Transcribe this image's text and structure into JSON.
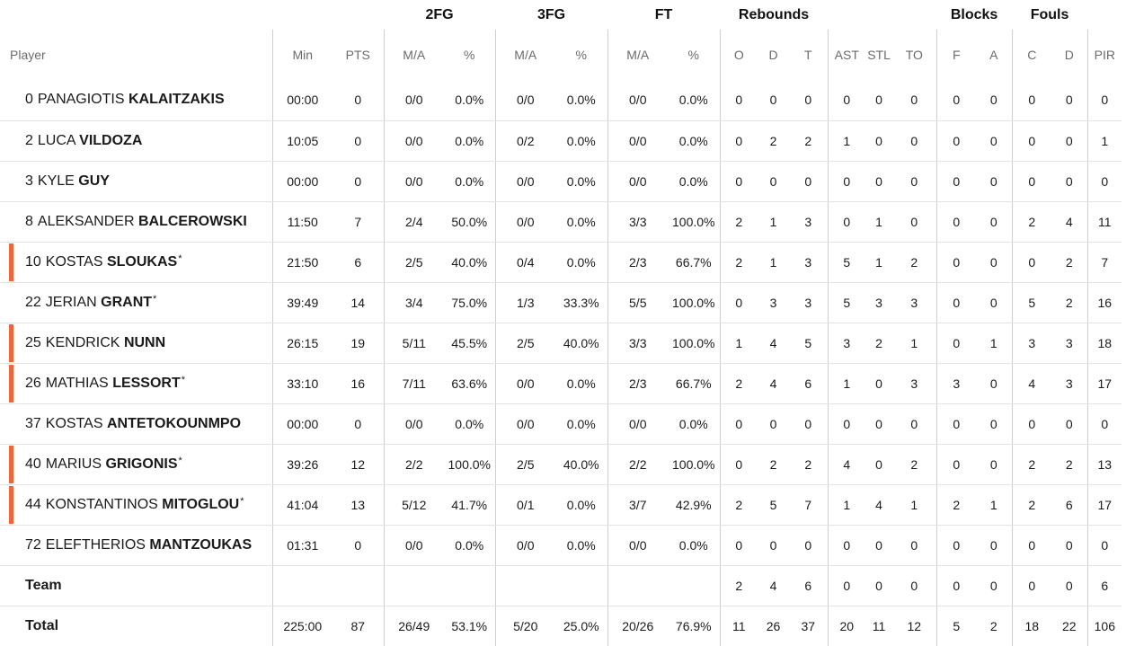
{
  "groups": {
    "fg2": "2FG",
    "fg3": "3FG",
    "ft": "FT",
    "reb": "Rebounds",
    "blk": "Blocks",
    "fouls": "Fouls"
  },
  "columns": {
    "player": "Player",
    "min": "Min",
    "pts": "PTS",
    "fg2_ma": "M/A",
    "fg2_pct": "%",
    "fg3_ma": "M/A",
    "fg3_pct": "%",
    "ft_ma": "M/A",
    "ft_pct": "%",
    "reb_o": "O",
    "reb_d": "D",
    "reb_t": "T",
    "ast": "AST",
    "stl": "STL",
    "to": "TO",
    "blk_f": "F",
    "blk_a": "A",
    "fouls_c": "C",
    "fouls_d": "D",
    "pir": "PIR"
  },
  "players": [
    {
      "number": "0",
      "first": "PANAGIOTIS",
      "last": "KALAITZAKIS",
      "star": "",
      "starter": false,
      "min": "00:00",
      "pts": "0",
      "fg2_ma": "0/0",
      "fg2_pct": "0.0%",
      "fg3_ma": "0/0",
      "fg3_pct": "0.0%",
      "ft_ma": "0/0",
      "ft_pct": "0.0%",
      "reb_o": "0",
      "reb_d": "0",
      "reb_t": "0",
      "ast": "0",
      "stl": "0",
      "to": "0",
      "blk_f": "0",
      "blk_a": "0",
      "fouls_c": "0",
      "fouls_d": "0",
      "pir": "0"
    },
    {
      "number": "2",
      "first": "LUCA",
      "last": "VILDOZA",
      "star": "",
      "starter": false,
      "min": "10:05",
      "pts": "0",
      "fg2_ma": "0/0",
      "fg2_pct": "0.0%",
      "fg3_ma": "0/2",
      "fg3_pct": "0.0%",
      "ft_ma": "0/0",
      "ft_pct": "0.0%",
      "reb_o": "0",
      "reb_d": "2",
      "reb_t": "2",
      "ast": "1",
      "stl": "0",
      "to": "0",
      "blk_f": "0",
      "blk_a": "0",
      "fouls_c": "0",
      "fouls_d": "0",
      "pir": "1"
    },
    {
      "number": "3",
      "first": "KYLE",
      "last": "GUY",
      "star": "",
      "starter": false,
      "min": "00:00",
      "pts": "0",
      "fg2_ma": "0/0",
      "fg2_pct": "0.0%",
      "fg3_ma": "0/0",
      "fg3_pct": "0.0%",
      "ft_ma": "0/0",
      "ft_pct": "0.0%",
      "reb_o": "0",
      "reb_d": "0",
      "reb_t": "0",
      "ast": "0",
      "stl": "0",
      "to": "0",
      "blk_f": "0",
      "blk_a": "0",
      "fouls_c": "0",
      "fouls_d": "0",
      "pir": "0"
    },
    {
      "number": "8",
      "first": "ALEKSANDER",
      "last": "BALCEROWSKI",
      "star": "",
      "starter": false,
      "min": "11:50",
      "pts": "7",
      "fg2_ma": "2/4",
      "fg2_pct": "50.0%",
      "fg3_ma": "0/0",
      "fg3_pct": "0.0%",
      "ft_ma": "3/3",
      "ft_pct": "100.0%",
      "reb_o": "2",
      "reb_d": "1",
      "reb_t": "3",
      "ast": "0",
      "stl": "1",
      "to": "0",
      "blk_f": "0",
      "blk_a": "0",
      "fouls_c": "2",
      "fouls_d": "4",
      "pir": "11"
    },
    {
      "number": "10",
      "first": "KOSTAS",
      "last": "SLOUKAS",
      "star": "*",
      "starter": true,
      "min": "21:50",
      "pts": "6",
      "fg2_ma": "2/5",
      "fg2_pct": "40.0%",
      "fg3_ma": "0/4",
      "fg3_pct": "0.0%",
      "ft_ma": "2/3",
      "ft_pct": "66.7%",
      "reb_o": "2",
      "reb_d": "1",
      "reb_t": "3",
      "ast": "5",
      "stl": "1",
      "to": "2",
      "blk_f": "0",
      "blk_a": "0",
      "fouls_c": "0",
      "fouls_d": "2",
      "pir": "7"
    },
    {
      "number": "22",
      "first": "JERIAN",
      "last": "GRANT",
      "star": "*",
      "starter": false,
      "min": "39:49",
      "pts": "14",
      "fg2_ma": "3/4",
      "fg2_pct": "75.0%",
      "fg3_ma": "1/3",
      "fg3_pct": "33.3%",
      "ft_ma": "5/5",
      "ft_pct": "100.0%",
      "reb_o": "0",
      "reb_d": "3",
      "reb_t": "3",
      "ast": "5",
      "stl": "3",
      "to": "3",
      "blk_f": "0",
      "blk_a": "0",
      "fouls_c": "5",
      "fouls_d": "2",
      "pir": "16"
    },
    {
      "number": "25",
      "first": "KENDRICK",
      "last": "NUNN",
      "star": "",
      "starter": true,
      "min": "26:15",
      "pts": "19",
      "fg2_ma": "5/11",
      "fg2_pct": "45.5%",
      "fg3_ma": "2/5",
      "fg3_pct": "40.0%",
      "ft_ma": "3/3",
      "ft_pct": "100.0%",
      "reb_o": "1",
      "reb_d": "4",
      "reb_t": "5",
      "ast": "3",
      "stl": "2",
      "to": "1",
      "blk_f": "0",
      "blk_a": "1",
      "fouls_c": "3",
      "fouls_d": "3",
      "pir": "18"
    },
    {
      "number": "26",
      "first": "MATHIAS",
      "last": "LESSORT",
      "star": "*",
      "starter": true,
      "min": "33:10",
      "pts": "16",
      "fg2_ma": "7/11",
      "fg2_pct": "63.6%",
      "fg3_ma": "0/0",
      "fg3_pct": "0.0%",
      "ft_ma": "2/3",
      "ft_pct": "66.7%",
      "reb_o": "2",
      "reb_d": "4",
      "reb_t": "6",
      "ast": "1",
      "stl": "0",
      "to": "3",
      "blk_f": "3",
      "blk_a": "0",
      "fouls_c": "4",
      "fouls_d": "3",
      "pir": "17"
    },
    {
      "number": "37",
      "first": "KOSTAS",
      "last": "ANTETOKOUNMPO",
      "star": "",
      "starter": false,
      "min": "00:00",
      "pts": "0",
      "fg2_ma": "0/0",
      "fg2_pct": "0.0%",
      "fg3_ma": "0/0",
      "fg3_pct": "0.0%",
      "ft_ma": "0/0",
      "ft_pct": "0.0%",
      "reb_o": "0",
      "reb_d": "0",
      "reb_t": "0",
      "ast": "0",
      "stl": "0",
      "to": "0",
      "blk_f": "0",
      "blk_a": "0",
      "fouls_c": "0",
      "fouls_d": "0",
      "pir": "0"
    },
    {
      "number": "40",
      "first": "MARIUS",
      "last": "GRIGONIS",
      "star": "*",
      "starter": true,
      "min": "39:26",
      "pts": "12",
      "fg2_ma": "2/2",
      "fg2_pct": "100.0%",
      "fg3_ma": "2/5",
      "fg3_pct": "40.0%",
      "ft_ma": "2/2",
      "ft_pct": "100.0%",
      "reb_o": "0",
      "reb_d": "2",
      "reb_t": "2",
      "ast": "4",
      "stl": "0",
      "to": "2",
      "blk_f": "0",
      "blk_a": "0",
      "fouls_c": "2",
      "fouls_d": "2",
      "pir": "13"
    },
    {
      "number": "44",
      "first": "KONSTANTINOS",
      "last": "MITOGLOU",
      "star": "*",
      "starter": true,
      "min": "41:04",
      "pts": "13",
      "fg2_ma": "5/12",
      "fg2_pct": "41.7%",
      "fg3_ma": "0/1",
      "fg3_pct": "0.0%",
      "ft_ma": "3/7",
      "ft_pct": "42.9%",
      "reb_o": "2",
      "reb_d": "5",
      "reb_t": "7",
      "ast": "1",
      "stl": "4",
      "to": "1",
      "blk_f": "2",
      "blk_a": "1",
      "fouls_c": "2",
      "fouls_d": "6",
      "pir": "17"
    },
    {
      "number": "72",
      "first": "ELEFTHERIOS",
      "last": "MANTZOUKAS",
      "star": "",
      "starter": false,
      "min": "01:31",
      "pts": "0",
      "fg2_ma": "0/0",
      "fg2_pct": "0.0%",
      "fg3_ma": "0/0",
      "fg3_pct": "0.0%",
      "ft_ma": "0/0",
      "ft_pct": "0.0%",
      "reb_o": "0",
      "reb_d": "0",
      "reb_t": "0",
      "ast": "0",
      "stl": "0",
      "to": "0",
      "blk_f": "0",
      "blk_a": "0",
      "fouls_c": "0",
      "fouls_d": "0",
      "pir": "0"
    }
  ],
  "team": {
    "label": "Team",
    "reb_o": "2",
    "reb_d": "4",
    "reb_t": "6",
    "ast": "0",
    "stl": "0",
    "to": "0",
    "blk_f": "0",
    "blk_a": "0",
    "fouls_c": "0",
    "fouls_d": "0",
    "pir": "6"
  },
  "total": {
    "label": "Total",
    "min": "225:00",
    "pts": "87",
    "fg2_ma": "26/49",
    "fg2_pct": "53.1%",
    "fg3_ma": "5/20",
    "fg3_pct": "25.0%",
    "ft_ma": "20/26",
    "ft_pct": "76.9%",
    "reb_o": "11",
    "reb_d": "26",
    "reb_t": "37",
    "ast": "20",
    "stl": "11",
    "to": "12",
    "blk_f": "5",
    "blk_a": "2",
    "fouls_c": "18",
    "fouls_d": "22",
    "pir": "106"
  },
  "colors": {
    "starter_bar": "#f0653a",
    "group_header_text": "#111111",
    "column_header_text": "#6b6b6b",
    "row_divider": "#e3e3e3",
    "column_divider": "#cfcfcf"
  }
}
